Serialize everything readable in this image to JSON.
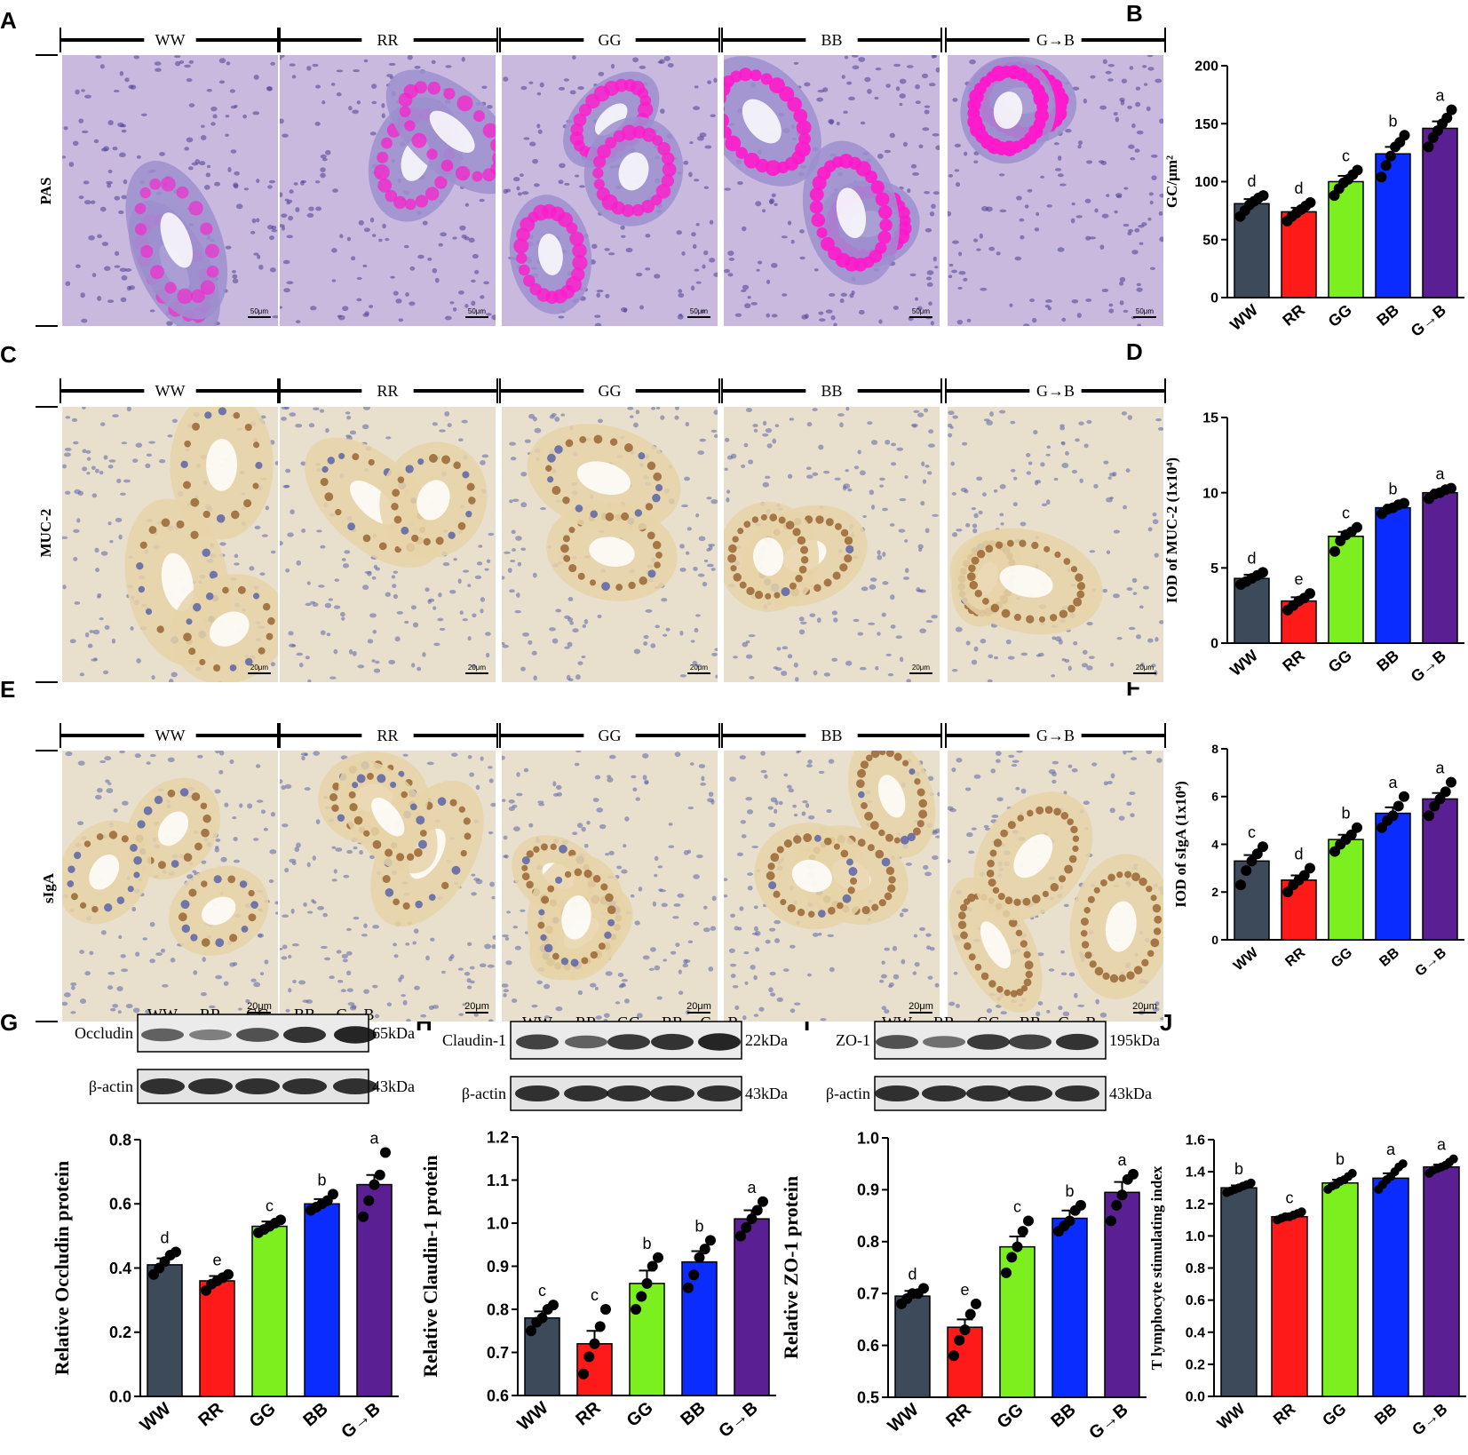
{
  "colors": {
    "WW": "#3d4a5a",
    "RR": "#ff1a1a",
    "GG": "#7cf01f",
    "BB": "#0a2cff",
    "G→B": "#5a1f92",
    "tissue_pas": "#c9b9df",
    "tissue_ihc": "#e8dfcc",
    "mucin": "#ff1acb",
    "dab": "#9a6634",
    "hematoxylin": "#5a64a8"
  },
  "groups": [
    "WW",
    "RR",
    "GG",
    "BB",
    "G→B"
  ],
  "panel_letters": [
    "A",
    "B",
    "C",
    "D",
    "E",
    "F",
    "G",
    "H",
    "I",
    "J"
  ],
  "micrographs": {
    "A": {
      "row_label": "PAS",
      "scale_bar": "50μm",
      "groups": [
        "WW",
        "RR",
        "GG",
        "BB",
        "G→B"
      ]
    },
    "C": {
      "row_label": "MUC-2",
      "scale_bar": "20μm",
      "groups": [
        "WW",
        "RR",
        "GG",
        "BB",
        "G→B"
      ]
    },
    "E": {
      "row_label": "sIgA",
      "scale_bar": "20μm",
      "groups": [
        "WW",
        "RR",
        "GG",
        "BB",
        "G→B"
      ]
    }
  },
  "blots": [
    {
      "panel": "G",
      "lanes": [
        "WW",
        "RR",
        "GG",
        "BB",
        "G→B"
      ],
      "target": "Occludin",
      "target_kda": "65kDa",
      "control": "β-actin",
      "control_kda": "43kDa",
      "intensity": [
        0.55,
        0.35,
        0.65,
        0.85,
        0.95
      ]
    },
    {
      "panel": "H",
      "lanes": [
        "WW",
        "RR",
        "GG",
        "BB",
        "G→B"
      ],
      "target": "Claudin-1",
      "target_kda": "22kDa",
      "control": "β-actin",
      "control_kda": "43kDa",
      "intensity": [
        0.75,
        0.55,
        0.8,
        0.85,
        0.95
      ]
    },
    {
      "panel": "I",
      "lanes": [
        "WW",
        "RR",
        "GG",
        "BB",
        "G→B"
      ],
      "target": "ZO-1",
      "target_kda": "195kDa",
      "control": "β-actin",
      "control_kda": "43kDa",
      "intensity": [
        0.65,
        0.45,
        0.8,
        0.75,
        0.85
      ]
    }
  ],
  "chart_data": [
    {
      "panel": "B",
      "type": "bar",
      "categories": [
        "WW",
        "RR",
        "GG",
        "BB",
        "G→B"
      ],
      "values": [
        81,
        74,
        100,
        124,
        146
      ],
      "errors": [
        4,
        3.5,
        5,
        6,
        6
      ],
      "letters": [
        "d",
        "d",
        "c",
        "b",
        "a"
      ],
      "ylabel": "GC/μm²",
      "ylim": [
        0,
        200
      ],
      "yticks": [
        0,
        50,
        100,
        150,
        200
      ],
      "points": [
        [
          70,
          75,
          80,
          83,
          86,
          88
        ],
        [
          66,
          70,
          73,
          76,
          79,
          82
        ],
        [
          88,
          94,
          99,
          102,
          106,
          110
        ],
        [
          104,
          114,
          122,
          130,
          134,
          140
        ],
        [
          130,
          138,
          144,
          150,
          155,
          162
        ]
      ]
    },
    {
      "panel": "D",
      "type": "bar",
      "categories": [
        "WW",
        "RR",
        "GG",
        "BB",
        "G→B"
      ],
      "values": [
        4.3,
        2.8,
        7.1,
        9.0,
        10.0
      ],
      "errors": [
        0.25,
        0.25,
        0.3,
        0.2,
        0.2
      ],
      "letters": [
        "d",
        "e",
        "c",
        "b",
        "a"
      ],
      "ylabel": "IOD of MUC-2 (1x10⁴)",
      "ylim": [
        0,
        15
      ],
      "yticks": [
        0,
        5,
        10,
        15
      ],
      "points": [
        [
          3.9,
          4.1,
          4.3,
          4.5,
          4.7
        ],
        [
          2.2,
          2.5,
          2.8,
          3.0,
          3.3
        ],
        [
          6.1,
          6.8,
          7.2,
          7.4,
          7.7
        ],
        [
          8.6,
          8.9,
          9.0,
          9.2,
          9.3
        ],
        [
          9.6,
          9.9,
          10.0,
          10.2,
          10.3
        ]
      ]
    },
    {
      "panel": "F",
      "type": "bar",
      "categories": [
        "WW",
        "RR",
        "GG",
        "BB",
        "G→B"
      ],
      "values": [
        3.3,
        2.5,
        4.2,
        5.3,
        5.9
      ],
      "errors": [
        0.25,
        0.2,
        0.2,
        0.25,
        0.25
      ],
      "letters": [
        "c",
        "d",
        "b",
        "a",
        "a"
      ],
      "ylabel": "IOD of sIgA (1x10⁴)",
      "ylim": [
        0,
        8
      ],
      "yticks": [
        0,
        2,
        4,
        6,
        8
      ],
      "points": [
        [
          2.3,
          2.9,
          3.3,
          3.6,
          3.9
        ],
        [
          2.0,
          2.3,
          2.5,
          2.7,
          3.0
        ],
        [
          3.7,
          4.0,
          4.2,
          4.4,
          4.7
        ],
        [
          4.7,
          5.0,
          5.2,
          5.6,
          6.0
        ],
        [
          5.2,
          5.6,
          5.9,
          6.2,
          6.6
        ]
      ]
    },
    {
      "panel": "G",
      "type": "bar",
      "categories": [
        "WW",
        "RR",
        "GG",
        "BB",
        "G→B"
      ],
      "values": [
        0.41,
        0.36,
        0.53,
        0.6,
        0.66
      ],
      "errors": [
        0.02,
        0.015,
        0.015,
        0.015,
        0.03
      ],
      "letters": [
        "d",
        "e",
        "c",
        "b",
        "a"
      ],
      "ylabel": "Relative Occludin  protein",
      "ylim": [
        0,
        0.8
      ],
      "yticks": [
        0.0,
        0.2,
        0.4,
        0.6,
        0.8
      ],
      "points": [
        [
          0.38,
          0.4,
          0.42,
          0.44,
          0.45
        ],
        [
          0.33,
          0.35,
          0.36,
          0.37,
          0.38
        ],
        [
          0.51,
          0.52,
          0.53,
          0.54,
          0.55
        ],
        [
          0.58,
          0.59,
          0.6,
          0.61,
          0.63
        ],
        [
          0.56,
          0.61,
          0.66,
          0.69,
          0.76
        ]
      ]
    },
    {
      "panel": "H",
      "type": "bar",
      "categories": [
        "WW",
        "RR",
        "GG",
        "BB",
        "G→B"
      ],
      "values": [
        0.78,
        0.72,
        0.86,
        0.91,
        1.01
      ],
      "errors": [
        0.015,
        0.03,
        0.03,
        0.025,
        0.02
      ],
      "letters": [
        "c",
        "c",
        "b",
        "b",
        "a"
      ],
      "ylabel": "Relative Claudin-1  protein",
      "ylim": [
        0.6,
        1.2
      ],
      "yticks": [
        0.6,
        0.7,
        0.8,
        0.9,
        1.0,
        1.1,
        1.2
      ],
      "points": [
        [
          0.75,
          0.77,
          0.78,
          0.8,
          0.81
        ],
        [
          0.65,
          0.69,
          0.72,
          0.76,
          0.8
        ],
        [
          0.8,
          0.83,
          0.86,
          0.9,
          0.92
        ],
        [
          0.85,
          0.88,
          0.92,
          0.94,
          0.96
        ],
        [
          0.97,
          0.99,
          1.01,
          1.03,
          1.05
        ]
      ]
    },
    {
      "panel": "I",
      "type": "bar",
      "categories": [
        "WW",
        "RR",
        "GG",
        "BB",
        "G→B"
      ],
      "values": [
        0.695,
        0.635,
        0.79,
        0.845,
        0.895
      ],
      "errors": [
        0.01,
        0.015,
        0.02,
        0.015,
        0.02
      ],
      "letters": [
        "d",
        "e",
        "c",
        "b",
        "a"
      ],
      "ylabel": "Relative ZO-1  protein",
      "ylim": [
        0.5,
        1.0
      ],
      "yticks": [
        0.5,
        0.6,
        0.7,
        0.8,
        0.9,
        1.0
      ],
      "points": [
        [
          0.68,
          0.69,
          0.7,
          0.7,
          0.71
        ],
        [
          0.58,
          0.61,
          0.63,
          0.66,
          0.68
        ],
        [
          0.74,
          0.77,
          0.79,
          0.82,
          0.84
        ],
        [
          0.82,
          0.83,
          0.84,
          0.86,
          0.87
        ],
        [
          0.84,
          0.87,
          0.89,
          0.92,
          0.93
        ]
      ]
    },
    {
      "panel": "J",
      "type": "bar",
      "categories": [
        "WW",
        "RR",
        "GG",
        "BB",
        "G→B"
      ],
      "values": [
        1.3,
        1.12,
        1.33,
        1.36,
        1.43
      ],
      "errors": [
        0.015,
        0.01,
        0.02,
        0.03,
        0.015
      ],
      "letters": [
        "b",
        "c",
        "b",
        "a",
        "a"
      ],
      "ylabel": "T lymphocyte stimulating index",
      "ylim": [
        0.0,
        1.6
      ],
      "yticks": [
        0.0,
        0.2,
        0.4,
        0.6,
        0.8,
        1.0,
        1.2,
        1.4,
        1.6
      ],
      "points": [
        [
          1.27,
          1.28,
          1.29,
          1.3,
          1.31,
          1.32,
          1.33
        ],
        [
          1.1,
          1.11,
          1.12,
          1.12,
          1.13,
          1.14,
          1.15
        ],
        [
          1.29,
          1.31,
          1.32,
          1.34,
          1.35,
          1.37,
          1.39
        ],
        [
          1.29,
          1.32,
          1.35,
          1.37,
          1.4,
          1.43,
          1.45
        ],
        [
          1.39,
          1.41,
          1.42,
          1.43,
          1.44,
          1.46,
          1.48
        ]
      ]
    }
  ]
}
